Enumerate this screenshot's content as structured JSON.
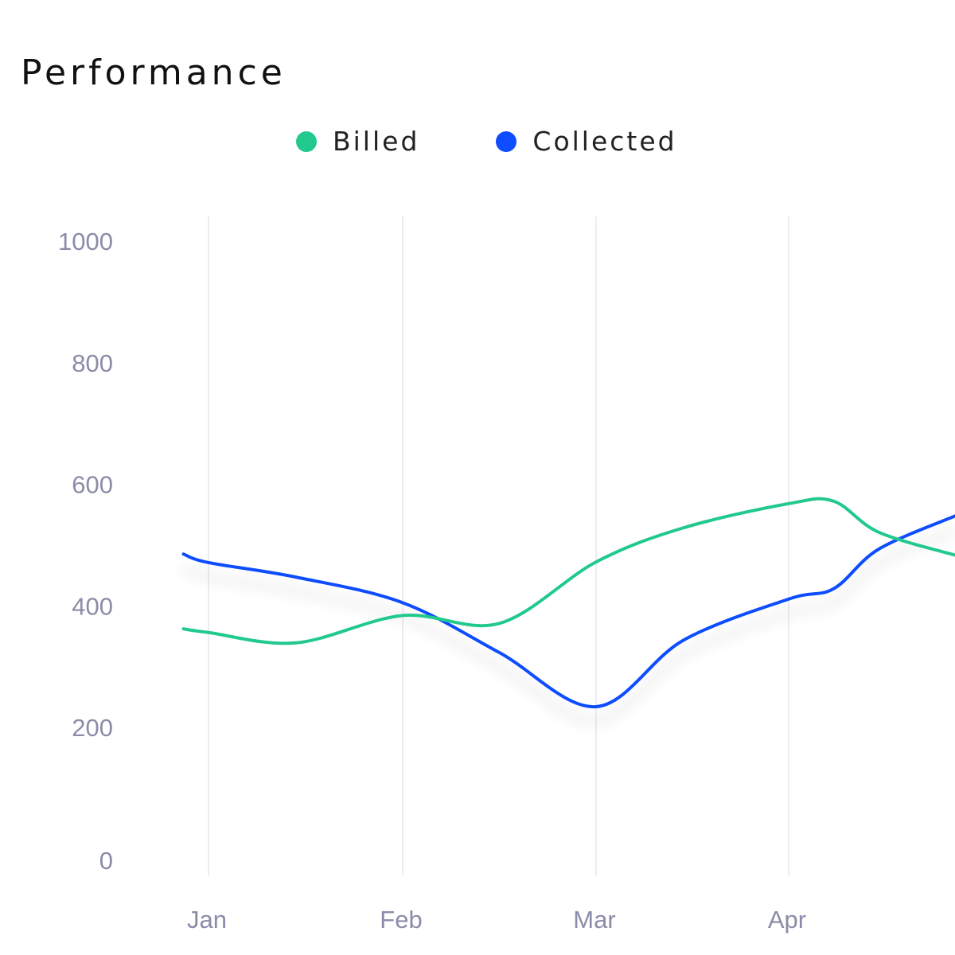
{
  "chart_data": {
    "type": "line",
    "title": "Performance",
    "xlabel": "",
    "ylabel": "",
    "ylim": [
      0,
      1000
    ],
    "yticks": [
      "0",
      "200",
      "400",
      "600",
      "800",
      "1000"
    ],
    "xticks": [
      "Jan",
      "Feb",
      "Mar",
      "Apr"
    ],
    "grid": "vertical lines at x ticks",
    "legend": "top-center",
    "x": [
      "Dec 28",
      "Jan 1",
      "Jan 15",
      "Feb 1",
      "Feb 15",
      "Mar 1",
      "Mar 15",
      "Apr 1",
      "Apr 8",
      "Apr 15",
      "Apr 27"
    ],
    "series": [
      {
        "name": "Billed",
        "color": "#22c98d",
        "values": [
          361,
          355,
          338,
          383,
          370,
          471,
          527,
          567,
          571,
          520,
          482
        ]
      },
      {
        "name": "Collected",
        "color": "#0d4dff",
        "values": [
          484,
          470,
          446,
          404,
          322,
          233,
          342,
          410,
          427,
          492,
          547
        ]
      }
    ]
  }
}
